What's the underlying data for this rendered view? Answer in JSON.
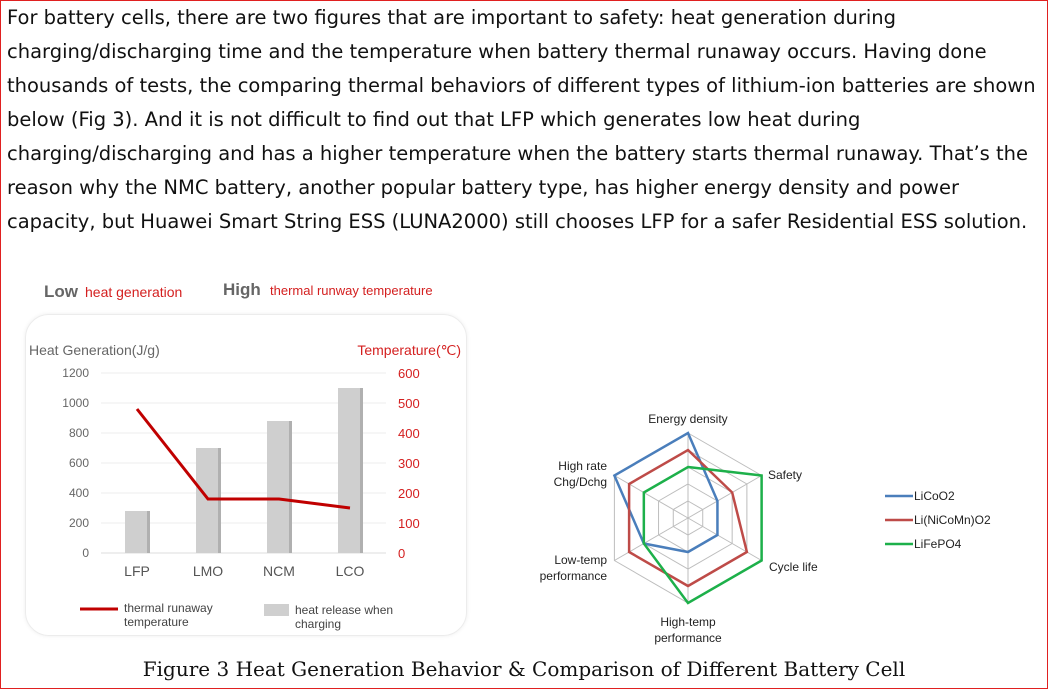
{
  "paragraph": "For battery cells, there are two figures that are important to safety: heat generation during charging/discharging time and the temperature when battery thermal runaway occurs. Having done thousands of tests, the comparing thermal behaviors of different types of lithium-ion batteries are shown below (Fig 3). And it is not difficult to find out that LFP which generates low heat during charging/discharging and has a higher temperature when the battery starts thermal runaway. That’s the reason why the NMC battery, another popular battery type, has higher energy density and power capacity, but Huawei Smart String ESS (LUNA2000) still chooses LFP for a safer Residential ESS solution.",
  "caption": "Figure 3 Heat Generation Behavior & Comparison of Different Battery Cell",
  "chart_data": [
    {
      "type": "bar",
      "headline": {
        "low_big": "Low",
        "low_small": "heat generation",
        "high_big": "High",
        "high_small": "thermal runway temperature"
      },
      "categories": [
        "LFP",
        "LMO",
        "NCM",
        "LCO"
      ],
      "ylabel": "Heat Generation(J/g)",
      "y2label": "Temperature(℃)",
      "ylim": [
        0,
        1200
      ],
      "y2lim": [
        0,
        600
      ],
      "yticks": [
        "0",
        "200",
        "400",
        "600",
        "800",
        "1000",
        "1200"
      ],
      "y2ticks": [
        "0",
        "100",
        "200",
        "300",
        "400",
        "500",
        "600"
      ],
      "series": [
        {
          "name": "heat release when charging",
          "type": "bar",
          "axis": "left",
          "values": [
            280,
            700,
            880,
            1100
          ],
          "color": "#cfcfcf"
        },
        {
          "name": "thermal runaway temperature",
          "type": "line",
          "axis": "right",
          "values": [
            480,
            180,
            180,
            150
          ],
          "color": "#c00000"
        }
      ],
      "legend": [
        "thermal runaway temperature",
        "heat release when charging"
      ],
      "grid": true
    },
    {
      "type": "radar",
      "axes": [
        "Energy density",
        "Safety",
        "Cycle life",
        "High-temp performance",
        "Low-temp performance",
        "High rate Chg/Dchg"
      ],
      "range": [
        0,
        5
      ],
      "series": [
        {
          "name": "LiCoO2",
          "values": [
            5,
            2,
            2,
            2,
            3,
            5
          ],
          "color": "#4a7ebb"
        },
        {
          "name": "Li(NiCoMn)O2",
          "values": [
            4,
            3,
            4,
            4,
            4,
            4
          ],
          "color": "#be4b48"
        },
        {
          "name": "LiFePO4",
          "values": [
            3,
            5,
            5,
            5,
            3,
            3
          ],
          "color": "#1db04a"
        }
      ],
      "legend_position": "right"
    }
  ]
}
